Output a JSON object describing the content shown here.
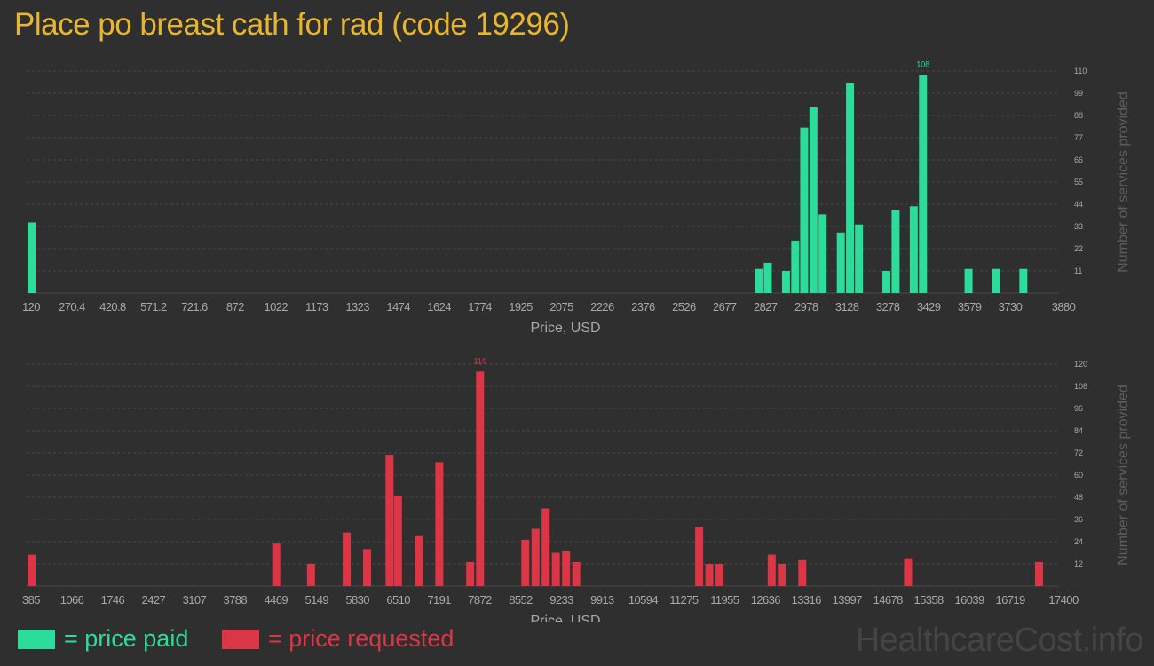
{
  "title": "Place po breast cath for rad (code 19296)",
  "watermark": "HealthcareCost.info",
  "colors": {
    "background": "#2f2f2f",
    "title": "#e8b62c",
    "paid": "#2bdc9a",
    "requested": "#dc3545",
    "axis_text": "#a8a8a8",
    "grid": "#4a4a4a"
  },
  "legend": {
    "paid_label": "= price paid",
    "requested_label": "= price requested"
  },
  "chart_data": [
    {
      "type": "bar",
      "series": [
        {
          "name": "price paid",
          "color": "#2bdc9a"
        }
      ],
      "xlabel": "Price, USD",
      "ylabel": "Number of services provided",
      "xlim": [
        120,
        3880
      ],
      "ylim": [
        0,
        110
      ],
      "x_ticks": [
        "120",
        "270.4",
        "420.8",
        "571.2",
        "721.6",
        "872",
        "1022",
        "1173",
        "1323",
        "1474",
        "1624",
        "1774",
        "1925",
        "2075",
        "2226",
        "2376",
        "2526",
        "2677",
        "2827",
        "2978",
        "3128",
        "3278",
        "3429",
        "3579",
        "3730",
        "3880"
      ],
      "y_ticks": [
        11,
        22,
        33,
        44,
        55,
        66,
        77,
        88,
        99,
        110
      ],
      "grid": true,
      "max_label": "108",
      "bars": [
        {
          "x": 120,
          "y": 35
        },
        {
          "x": 2802,
          "y": 12
        },
        {
          "x": 2836,
          "y": 15
        },
        {
          "x": 2903,
          "y": 11
        },
        {
          "x": 2937,
          "y": 26
        },
        {
          "x": 2970,
          "y": 82
        },
        {
          "x": 3004,
          "y": 92
        },
        {
          "x": 3038,
          "y": 39
        },
        {
          "x": 3105,
          "y": 30
        },
        {
          "x": 3139,
          "y": 104
        },
        {
          "x": 3172,
          "y": 34
        },
        {
          "x": 3273,
          "y": 11
        },
        {
          "x": 3307,
          "y": 41
        },
        {
          "x": 3374,
          "y": 43
        },
        {
          "x": 3408,
          "y": 108
        },
        {
          "x": 3576,
          "y": 12
        },
        {
          "x": 3677,
          "y": 12
        },
        {
          "x": 3778,
          "y": 12
        }
      ]
    },
    {
      "type": "bar",
      "series": [
        {
          "name": "price requested",
          "color": "#dc3545"
        }
      ],
      "xlabel": "Price, USD",
      "ylabel": "Number of services provided",
      "xlim": [
        385,
        17400
      ],
      "ylim": [
        0,
        120
      ],
      "x_ticks": [
        "385",
        "1066",
        "1746",
        "2427",
        "3107",
        "3788",
        "4469",
        "5149",
        "5830",
        "6510",
        "7191",
        "7872",
        "8552",
        "9233",
        "9913",
        "10594",
        "11275",
        "11955",
        "12636",
        "13316",
        "13997",
        "14678",
        "15358",
        "16039",
        "16719",
        "17400"
      ],
      "y_ticks": [
        12,
        24,
        36,
        48,
        60,
        72,
        84,
        96,
        108,
        120
      ],
      "grid": true,
      "max_label": "116",
      "bars": [
        {
          "x": 385,
          "y": 17
        },
        {
          "x": 4475,
          "y": 23
        },
        {
          "x": 5055,
          "y": 12
        },
        {
          "x": 5650,
          "y": 29
        },
        {
          "x": 5990,
          "y": 20
        },
        {
          "x": 6365,
          "y": 71
        },
        {
          "x": 6505,
          "y": 49
        },
        {
          "x": 6850,
          "y": 27
        },
        {
          "x": 7195,
          "y": 67
        },
        {
          "x": 7710,
          "y": 13
        },
        {
          "x": 7875,
          "y": 116
        },
        {
          "x": 8630,
          "y": 25
        },
        {
          "x": 8800,
          "y": 31
        },
        {
          "x": 8970,
          "y": 42
        },
        {
          "x": 9140,
          "y": 18
        },
        {
          "x": 9310,
          "y": 19
        },
        {
          "x": 9480,
          "y": 13
        },
        {
          "x": 11530,
          "y": 32
        },
        {
          "x": 11700,
          "y": 12
        },
        {
          "x": 11870,
          "y": 12
        },
        {
          "x": 12740,
          "y": 17
        },
        {
          "x": 12910,
          "y": 12
        },
        {
          "x": 13250,
          "y": 14
        },
        {
          "x": 15015,
          "y": 15
        },
        {
          "x": 17200,
          "y": 13
        }
      ]
    }
  ]
}
